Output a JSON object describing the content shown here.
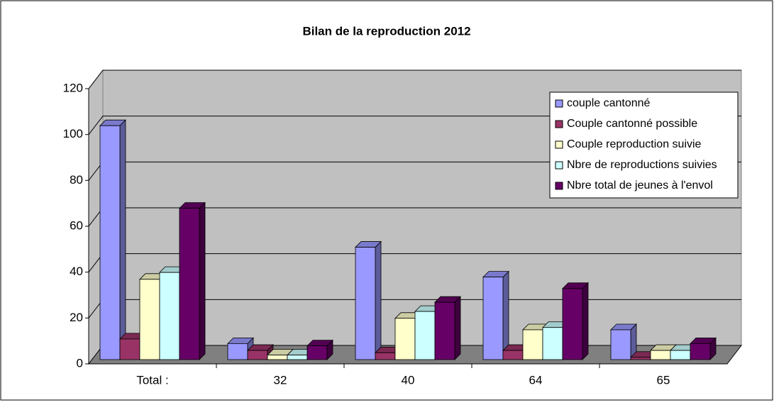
{
  "chart_data": {
    "type": "bar3d",
    "title": "Bilan de la reproduction 2012",
    "categories": [
      "Total :",
      "32",
      "40",
      "64",
      "65"
    ],
    "series": [
      {
        "name": "couple cantonné",
        "color": "#9999ff",
        "values": [
          102,
          7,
          49,
          36,
          13
        ]
      },
      {
        "name": "Couple cantonné possible",
        "color": "#993366",
        "values": [
          9,
          4,
          3,
          4,
          1
        ]
      },
      {
        "name": "Couple reproduction suivie",
        "color": "#ffffcc",
        "values": [
          35,
          2,
          18,
          13,
          4
        ]
      },
      {
        "name": "Nbre de reproductions suivies",
        "color": "#ccffff",
        "values": [
          38,
          2,
          21,
          14,
          4
        ]
      },
      {
        "name": "Nbre total de jeunes à l'envol",
        "color": "#660066",
        "values": [
          66,
          6,
          25,
          31,
          7
        ]
      }
    ],
    "ylim": [
      0,
      120
    ],
    "yticks": [
      0,
      20,
      40,
      60,
      80,
      100,
      120
    ],
    "grid": true
  }
}
